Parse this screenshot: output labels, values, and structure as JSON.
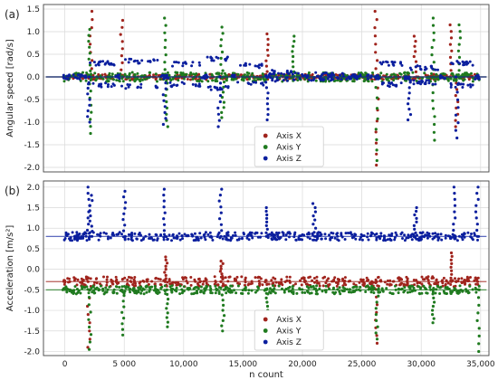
{
  "colors": {
    "x": "#a0241d",
    "y": "#1f7a1f",
    "z": "#0b1f9e"
  },
  "chart_data": [
    {
      "type": "scatter",
      "panel_label": "(a)",
      "ylabel": "Angular speed [rad/s]",
      "xlim": [
        -1800,
        35700
      ],
      "ylim": [
        -2.1,
        1.6
      ],
      "yticks": [
        -2.0,
        -1.5,
        -1.0,
        -0.5,
        0.0,
        0.5,
        1.0,
        1.5
      ],
      "ytick_labels": [
        "-2.0",
        "-1.5",
        "-1.0",
        "-0.5",
        "0.0",
        "0.5",
        "1.0",
        "1.5"
      ],
      "xticks": [
        0,
        5000,
        10000,
        15000,
        20000,
        25000,
        30000,
        35000
      ],
      "grid": true,
      "legend": "bottom-center",
      "series": [
        {
          "name": "Axis X",
          "color_key": "x",
          "baseline": 0.0,
          "spread": 0.06,
          "spike_points": [
            [
              2200,
              1.45
            ],
            [
              4800,
              1.25
            ],
            [
              26200,
              1.45
            ],
            [
              26300,
              -1.95
            ],
            [
              32500,
              1.15
            ],
            [
              33000,
              -1.1
            ],
            [
              17000,
              0.95
            ],
            [
              29500,
              0.9
            ]
          ]
        },
        {
          "name": "Axis Y",
          "color_key": "y",
          "baseline": 0.0,
          "spread": 0.1,
          "spike_points": [
            [
              2100,
              1.05
            ],
            [
              2150,
              -1.25
            ],
            [
              8500,
              1.3
            ],
            [
              8600,
              -1.1
            ],
            [
              13200,
              1.1
            ],
            [
              13300,
              -0.9
            ],
            [
              19200,
              0.9
            ],
            [
              26250,
              -1.85
            ],
            [
              31000,
              1.3
            ],
            [
              31050,
              -1.4
            ],
            [
              33200,
              1.15
            ]
          ]
        },
        {
          "name": "Axis Z",
          "color_key": "z",
          "baseline": 0.0,
          "spread": 0.05,
          "steps": [
            [
              1800,
              4200,
              0.3
            ],
            [
              4600,
              8000,
              0.35
            ],
            [
              8800,
              11500,
              0.28
            ],
            [
              12000,
              13800,
              0.4
            ],
            [
              14300,
              16800,
              0.25
            ],
            [
              17200,
              20000,
              0.1
            ],
            [
              20500,
              23500,
              0.05
            ],
            [
              26500,
              28500,
              0.3
            ],
            [
              29000,
              31500,
              0.2
            ],
            [
              32000,
              34500,
              0.3
            ]
          ],
          "spike_points": [
            [
              2000,
              -1.0
            ],
            [
              8400,
              -1.05
            ],
            [
              13000,
              -1.1
            ],
            [
              17000,
              -0.95
            ],
            [
              29000,
              -0.95
            ],
            [
              33000,
              -1.35
            ]
          ]
        }
      ]
    },
    {
      "type": "scatter",
      "panel_label": "(b)",
      "ylabel": "Acceleration [m/s²]",
      "xlabel": "n count",
      "xlim": [
        -1800,
        35700
      ],
      "ylim": [
        -2.1,
        2.15
      ],
      "yticks": [
        -2.0,
        -1.5,
        -1.0,
        -0.5,
        0.0,
        0.5,
        1.0,
        1.5,
        2.0
      ],
      "ytick_labels": [
        "-2.0",
        "-1.5",
        "-1.0",
        "-0.5",
        "0.0",
        "0.5",
        "1.0",
        "1.5",
        "2.0"
      ],
      "xticks": [
        0,
        5000,
        10000,
        15000,
        20000,
        25000,
        30000,
        35000
      ],
      "xtick_labels": [
        "0",
        "5 000",
        "10,000",
        "15,000",
        "20,000",
        "25,000",
        "30,000",
        "35,000"
      ],
      "grid": true,
      "legend": "bottom-center",
      "series": [
        {
          "name": "Axis X",
          "color_key": "x",
          "baseline": -0.3,
          "spread": 0.12,
          "spike_points": [
            [
              2000,
              -1.9
            ],
            [
              8500,
              0.3
            ],
            [
              13200,
              0.2
            ],
            [
              26200,
              -1.8
            ],
            [
              32500,
              0.4
            ]
          ]
        },
        {
          "name": "Axis Y",
          "color_key": "y",
          "baseline": -0.5,
          "spread": 0.1,
          "spike_points": [
            [
              2100,
              -1.95
            ],
            [
              4900,
              -1.6
            ],
            [
              8600,
              -1.4
            ],
            [
              13300,
              -1.5
            ],
            [
              17000,
              -1.3
            ],
            [
              26300,
              -1.7
            ],
            [
              31000,
              -1.3
            ],
            [
              34800,
              -2.0
            ]
          ]
        },
        {
          "name": "Axis Z",
          "color_key": "z",
          "baseline": 0.8,
          "spread": 0.1,
          "spike_points": [
            [
              2000,
              2.0
            ],
            [
              2200,
              1.8
            ],
            [
              5000,
              1.9
            ],
            [
              8400,
              1.95
            ],
            [
              13100,
              1.95
            ],
            [
              17000,
              1.5
            ],
            [
              21000,
              1.6
            ],
            [
              29500,
              1.5
            ],
            [
              32800,
              2.0
            ],
            [
              34700,
              2.0
            ]
          ]
        }
      ]
    }
  ]
}
